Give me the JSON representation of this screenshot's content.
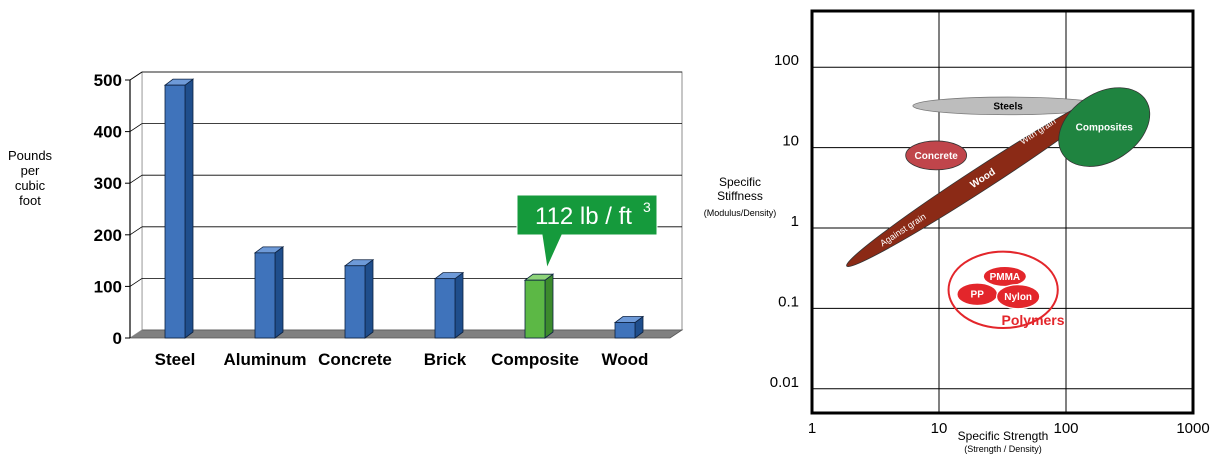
{
  "colors": {
    "bar": "#3F73BB",
    "bar_highlight": "#5CB845",
    "callout": "#159A3C",
    "grid": "#000000",
    "floor": "#808080",
    "concrete": "#C0454B",
    "wood": "#8B2A16",
    "steels": "#BDBDBD",
    "composites": "#1F8440",
    "polymers": "#E3262B"
  },
  "chart_data": [
    {
      "type": "bar",
      "ylabel": "Pounds per cubic foot",
      "ylabel_lines": [
        "Pounds",
        "per",
        "cubic",
        "foot"
      ],
      "categories": [
        "Steel",
        "Aluminum",
        "Concrete",
        "Brick",
        "Composite",
        "Wood"
      ],
      "values": [
        490,
        165,
        140,
        115,
        112,
        30
      ],
      "highlight": "Composite",
      "ylim": [
        0,
        500
      ],
      "yticks": [
        0,
        100,
        200,
        300,
        400,
        500
      ],
      "grid": true,
      "callout": {
        "text": "112 lb / ft",
        "superscript": "3"
      }
    },
    {
      "type": "scatter",
      "title": "",
      "xlabel": "Specific Strength",
      "xlabel_sub": "(Strength / Density)",
      "ylabel": "Specific Stiffness",
      "ylabel_lines": [
        "Specific",
        "Stiffness"
      ],
      "ylabel_sub": "(Modulus/Density)",
      "xscale": "log",
      "yscale": "log",
      "xlim": [
        1,
        1000
      ],
      "ylim": [
        0.005,
        500
      ],
      "xticks": [
        1,
        10,
        100,
        1000
      ],
      "xtick_labels": [
        "1",
        "10",
        "100",
        "1000"
      ],
      "yticks": [
        0.01,
        0.1,
        1,
        10,
        100
      ],
      "ytick_labels": [
        "0.01",
        "0.1",
        "1",
        "10",
        "100"
      ],
      "grid": true,
      "regions": [
        {
          "name": "Steels",
          "label": "Steels",
          "cx": 35,
          "cy": 33,
          "w_decades": 1.5,
          "h_decades": 0.22,
          "angle": 0,
          "color_key": "steels",
          "text_color": "#000000"
        },
        {
          "name": "Concrete",
          "label": "Concrete",
          "cx": 9.5,
          "cy": 8,
          "w_decades": 0.48,
          "h_decades": 0.36,
          "angle": 0,
          "color_key": "concrete",
          "text_color": "#ffffff"
        },
        {
          "name": "Wood",
          "label": "Wood",
          "cx": 22,
          "cy": 4.2,
          "w_decades": 2.55,
          "h_decades": 0.28,
          "angle": -33,
          "color_key": "wood",
          "text_color": "#ffffff",
          "sublabels": [
            {
              "text": "Against grain",
              "x": 5.2,
              "y": 0.95
            },
            {
              "text": "With grain",
              "x": 60,
              "y": 16
            }
          ]
        },
        {
          "name": "Composites",
          "label": "Composites",
          "cx": 200,
          "cy": 18,
          "w_decades": 0.78,
          "h_decades": 0.85,
          "angle": -33,
          "color_key": "composites",
          "text_color": "#ffffff"
        },
        {
          "name": "Polymers",
          "label": "Polymers",
          "cx": 32,
          "cy": 0.17,
          "w_decades": 0.86,
          "h_decades": 0.95,
          "angle": 0,
          "color_key": "polymers",
          "outline": true,
          "label_x": 55,
          "label_y": 0.07
        },
        {
          "name": "PMMA",
          "label": "PMMA",
          "cx": 33,
          "cy": 0.25,
          "w_decades": 0.34,
          "h_decades": 0.25,
          "angle": 0,
          "color_key": "polymers",
          "text_color": "#ffffff"
        },
        {
          "name": "PP",
          "label": "PP",
          "cx": 20,
          "cy": 0.15,
          "w_decades": 0.32,
          "h_decades": 0.28,
          "angle": 0,
          "color_key": "polymers",
          "text_color": "#ffffff"
        },
        {
          "name": "Nylon",
          "label": "Nylon",
          "cx": 42,
          "cy": 0.14,
          "w_decades": 0.34,
          "h_decades": 0.3,
          "angle": 0,
          "color_key": "polymers",
          "text_color": "#ffffff"
        }
      ]
    }
  ]
}
